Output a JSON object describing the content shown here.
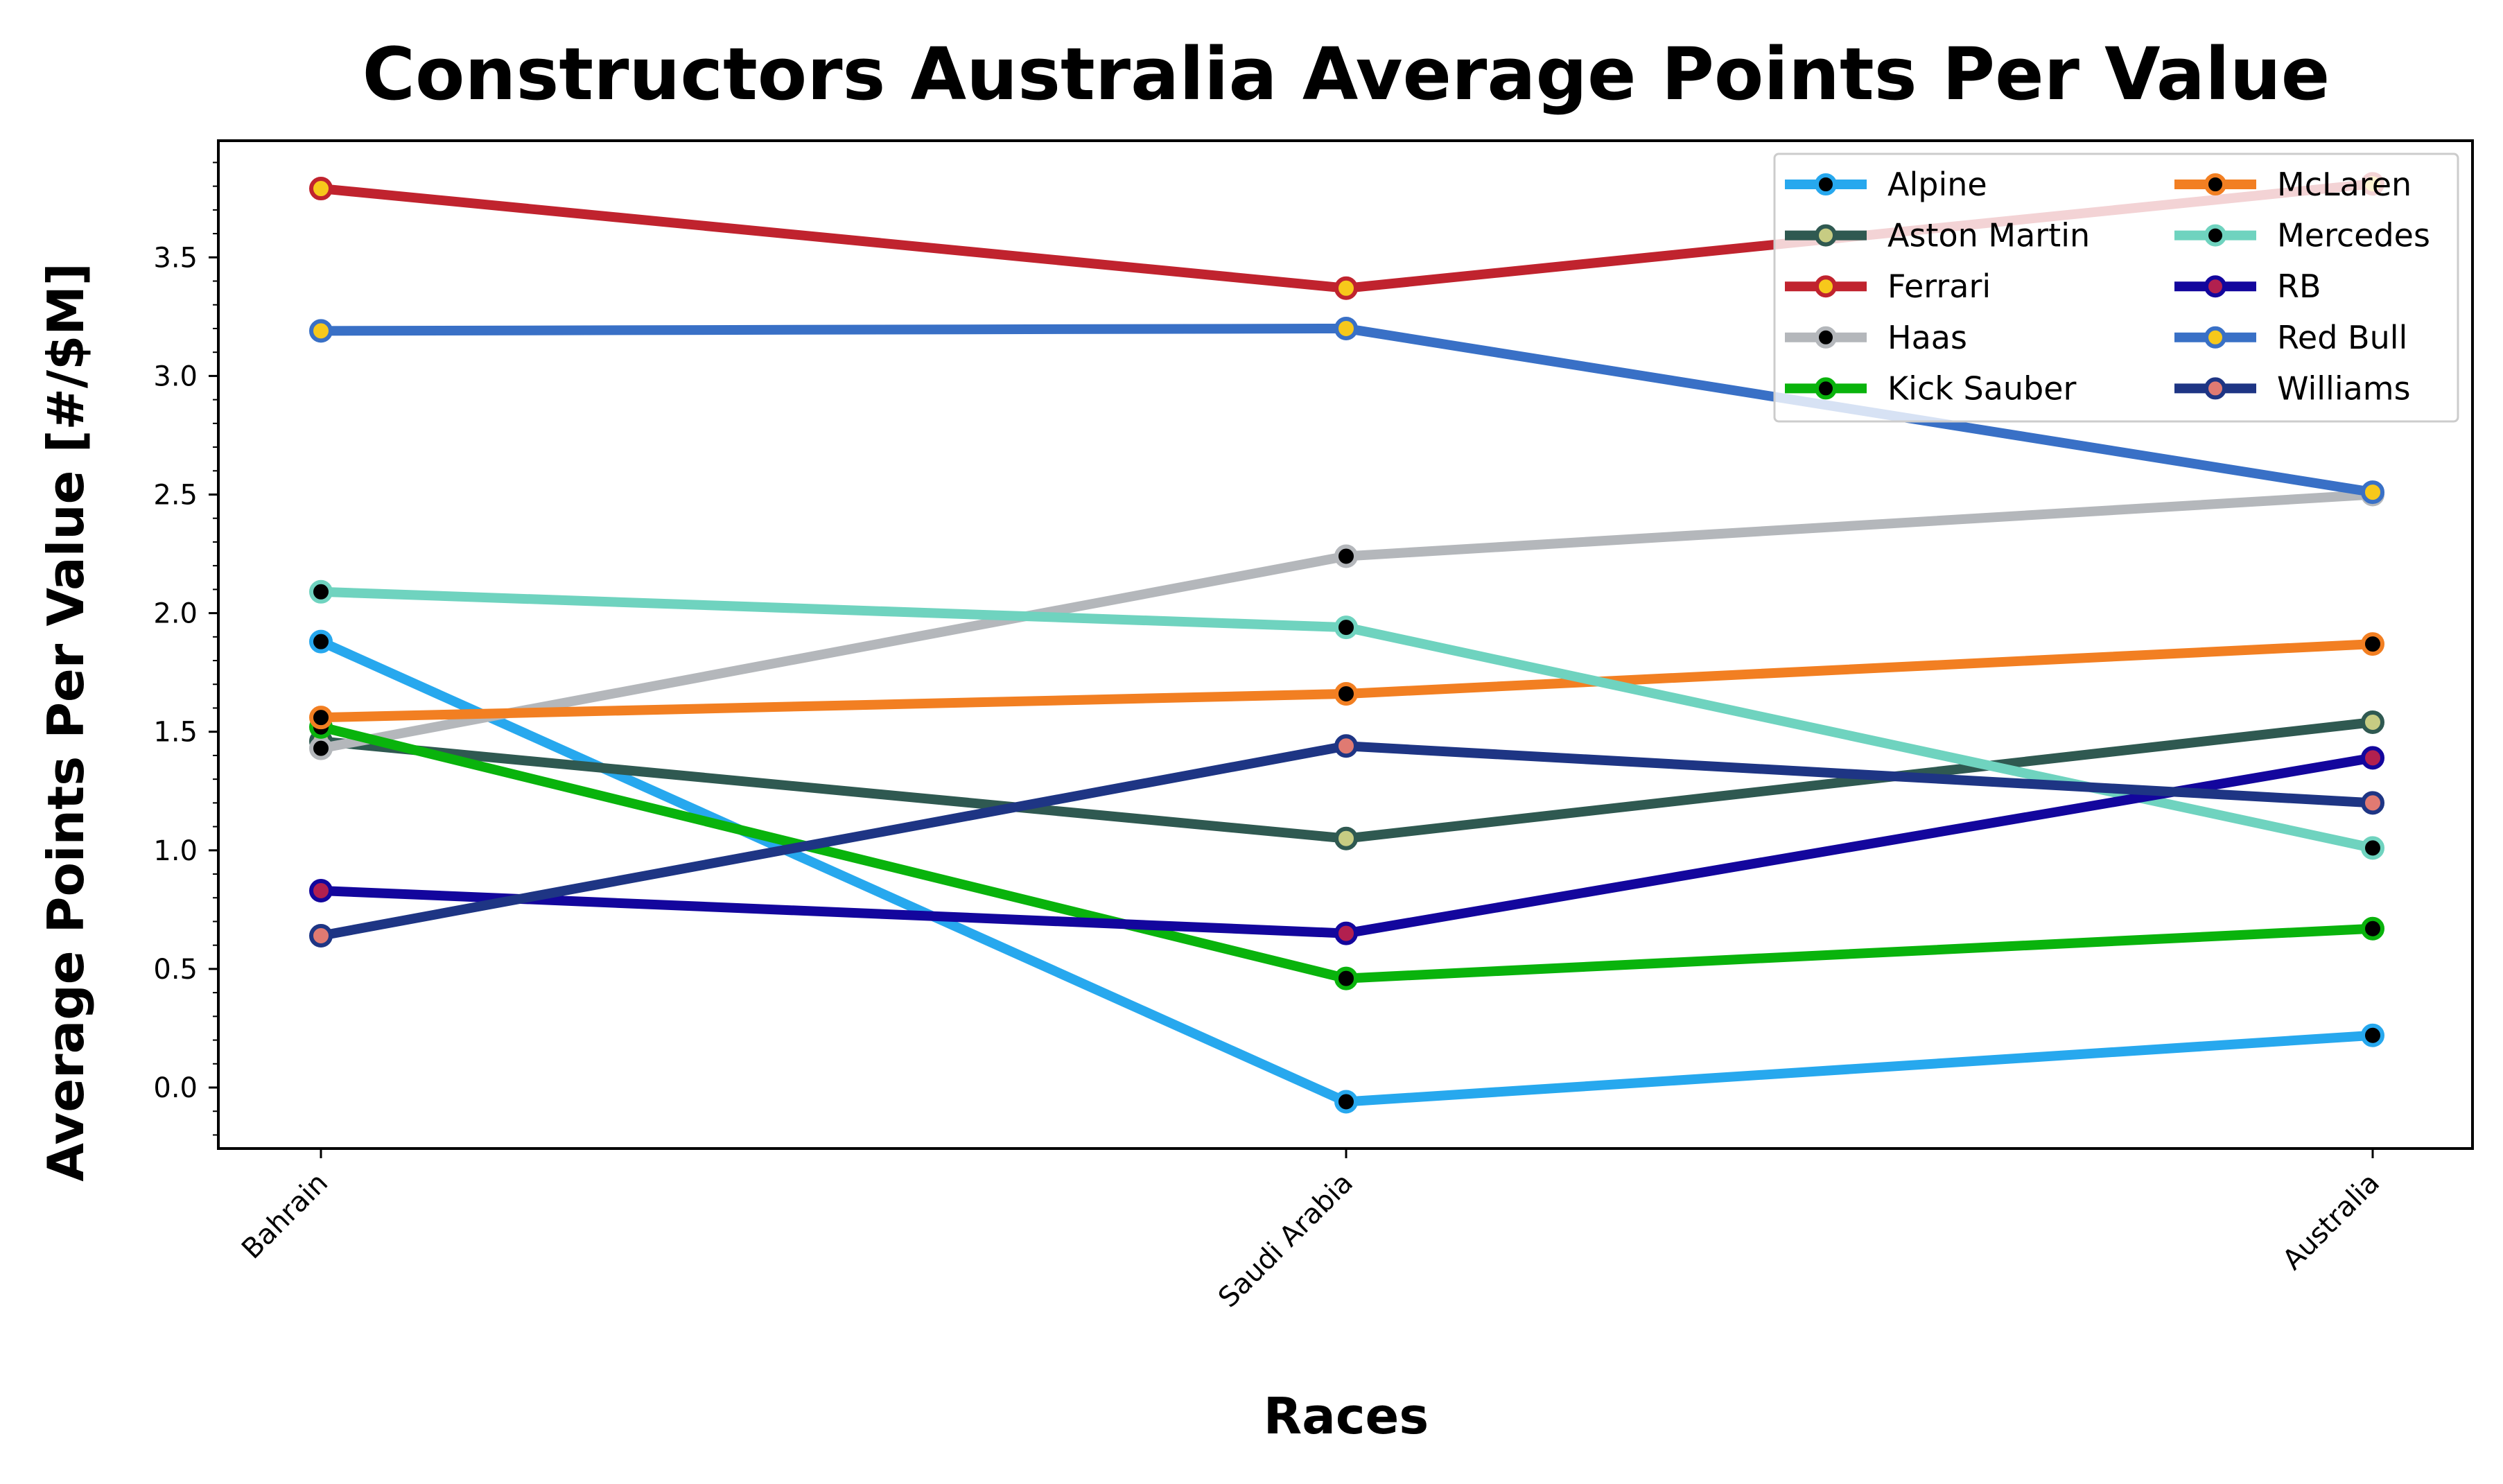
{
  "chart_data": {
    "type": "line",
    "title": "Constructors Australia Average Points Per Value",
    "xlabel": "Races",
    "ylabel": "Average Points Per Value [#/$M]",
    "categories": [
      "Bahrain",
      "Saudi Arabia",
      "Australia"
    ],
    "ylim": [
      -0.25,
      4.0
    ],
    "yticks": [
      "0.0",
      "0.5",
      "1.0",
      "1.5",
      "2.0",
      "2.5",
      "3.0",
      "3.5"
    ],
    "grid": false,
    "legend_placement": "top-right",
    "series": [
      {
        "name": "Alpine",
        "values": [
          1.88,
          -0.06,
          0.22
        ],
        "color": "#27a8ee",
        "marker_edge": "#27a8ee",
        "marker_face": "#000000"
      },
      {
        "name": "Aston Martin",
        "values": [
          1.46,
          1.05,
          1.54
        ],
        "color": "#2f5951",
        "marker_edge": "#2f5951",
        "marker_face": "#c7cc83"
      },
      {
        "name": "Ferrari",
        "values": [
          3.79,
          3.37,
          3.81
        ],
        "color": "#c0232e",
        "marker_edge": "#c0232e",
        "marker_face": "#f7c81b"
      },
      {
        "name": "Haas",
        "values": [
          1.43,
          2.24,
          2.5
        ],
        "color": "#b4b7bb",
        "marker_edge": "#b4b7bb",
        "marker_face": "#000000"
      },
      {
        "name": "Kick Sauber",
        "values": [
          1.52,
          0.46,
          0.67
        ],
        "color": "#09b30c",
        "marker_edge": "#09b30c",
        "marker_face": "#000000"
      },
      {
        "name": "McLaren",
        "values": [
          1.56,
          1.66,
          1.87
        ],
        "color": "#f27f22",
        "marker_edge": "#f27f22",
        "marker_face": "#000000"
      },
      {
        "name": "Mercedes",
        "values": [
          2.09,
          1.94,
          1.01
        ],
        "color": "#6fd3bf",
        "marker_edge": "#6fd3bf",
        "marker_face": "#000000"
      },
      {
        "name": "RB",
        "values": [
          0.83,
          0.65,
          1.39
        ],
        "color": "#13069d",
        "marker_edge": "#13069d",
        "marker_face": "#b2204f"
      },
      {
        "name": "Red Bull",
        "values": [
          3.19,
          3.2,
          2.51
        ],
        "color": "#3970c6",
        "marker_edge": "#3970c6",
        "marker_face": "#f7c81b"
      },
      {
        "name": "Williams",
        "values": [
          0.64,
          1.44,
          1.2
        ],
        "color": "#1e3584",
        "marker_edge": "#1e3584",
        "marker_face": "#e07a72"
      }
    ]
  }
}
